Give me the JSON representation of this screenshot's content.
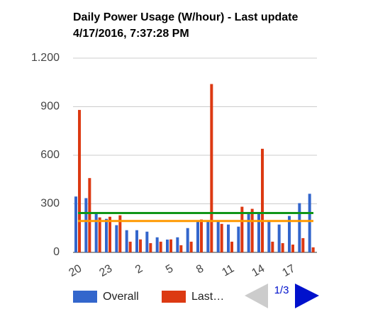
{
  "chart_data": {
    "type": "bar",
    "title": [
      "Daily Power Usage (W/hour) - Last update",
      "4/17/2016, 7:37:28 PM"
    ],
    "categories": [
      "20",
      null,
      null,
      "23",
      null,
      null,
      "2",
      null,
      null,
      "5",
      null,
      null,
      "8",
      null,
      null,
      "11",
      null,
      null,
      "14",
      null,
      null,
      "17",
      null,
      null
    ],
    "series": [
      {
        "name": "Overall",
        "color": "#3366cc",
        "values": [
          345,
          335,
          247,
          207,
          168,
          137,
          137,
          128,
          93,
          79,
          93,
          150,
          198,
          194,
          194,
          172,
          159,
          238,
          247,
          190,
          172,
          225,
          304,
          362
        ]
      },
      {
        "name": "Last…",
        "color": "#dc3912",
        "values": [
          880,
          459,
          216,
          220,
          229,
          66,
          80,
          57,
          66,
          80,
          44,
          66,
          203,
          1040,
          176,
          66,
          282,
          269,
          640,
          66,
          57,
          48,
          88,
          31
        ]
      }
    ],
    "reference_lines": [
      {
        "color": "#109618",
        "value": 243
      },
      {
        "color": "#ff9900",
        "value": 194
      }
    ],
    "ylim": [
      0,
      1200
    ],
    "yticks": [
      0,
      300,
      600,
      900,
      {
        "value": 1200,
        "label": "1.200"
      }
    ],
    "grid": true,
    "legend_page": "1/3"
  }
}
